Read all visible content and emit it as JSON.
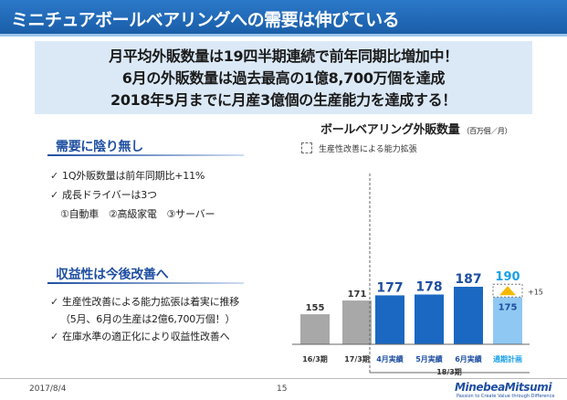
{
  "header": {
    "title": "ミニチュアボールベアリングへの需要は伸びている"
  },
  "banner": {
    "lines": [
      "月平均外販数量は19四半期連続で前年同期比増加中！",
      "6月の外販数量は過去最高の1億8,700万個を達成",
      "2018年5月までに月産3億個の生産能力を達成する！"
    ]
  },
  "section1": {
    "title": "需要に陰り無し",
    "bullets": [
      "1Q外販数量は前年同期比+11%",
      "成長ドライバーは3つ"
    ],
    "sub": "①自動車　②高級家電　③サーバー"
  },
  "section2": {
    "title": "収益性は今後改善へ",
    "bullets": [
      "生産性改善による能力拡張は着実に推移",
      "在庫水準の適正化により収益性改善へ"
    ],
    "sub": "（5月、6月の生産は2億6,700万個！）"
  },
  "chart_data": {
    "type": "bar",
    "title": "ボールベアリング外販数量",
    "unit": "（百万個／月）",
    "legend": "生産性改善による能力拡張",
    "categories": [
      "16/3期",
      "17/3期",
      "4月実績",
      "5月実績",
      "6月実績",
      "通期計画"
    ],
    "group_label": "18/3期",
    "values": [
      155,
      171,
      177,
      178,
      187,
      190
    ],
    "plan_base": 175,
    "plan_increment_label": "+15",
    "colors": {
      "past": "#a8a8a8",
      "actual": "#1a68c2",
      "plan": "#8fc8f3",
      "plan_label": "#1aa0e8",
      "arrow": "#f5b800"
    }
  },
  "footer": {
    "date": "2017/8/4",
    "page": "15"
  },
  "logo": {
    "name": "MinebeaMitsumi",
    "tagline": "Passion to Create Value through Difference"
  }
}
